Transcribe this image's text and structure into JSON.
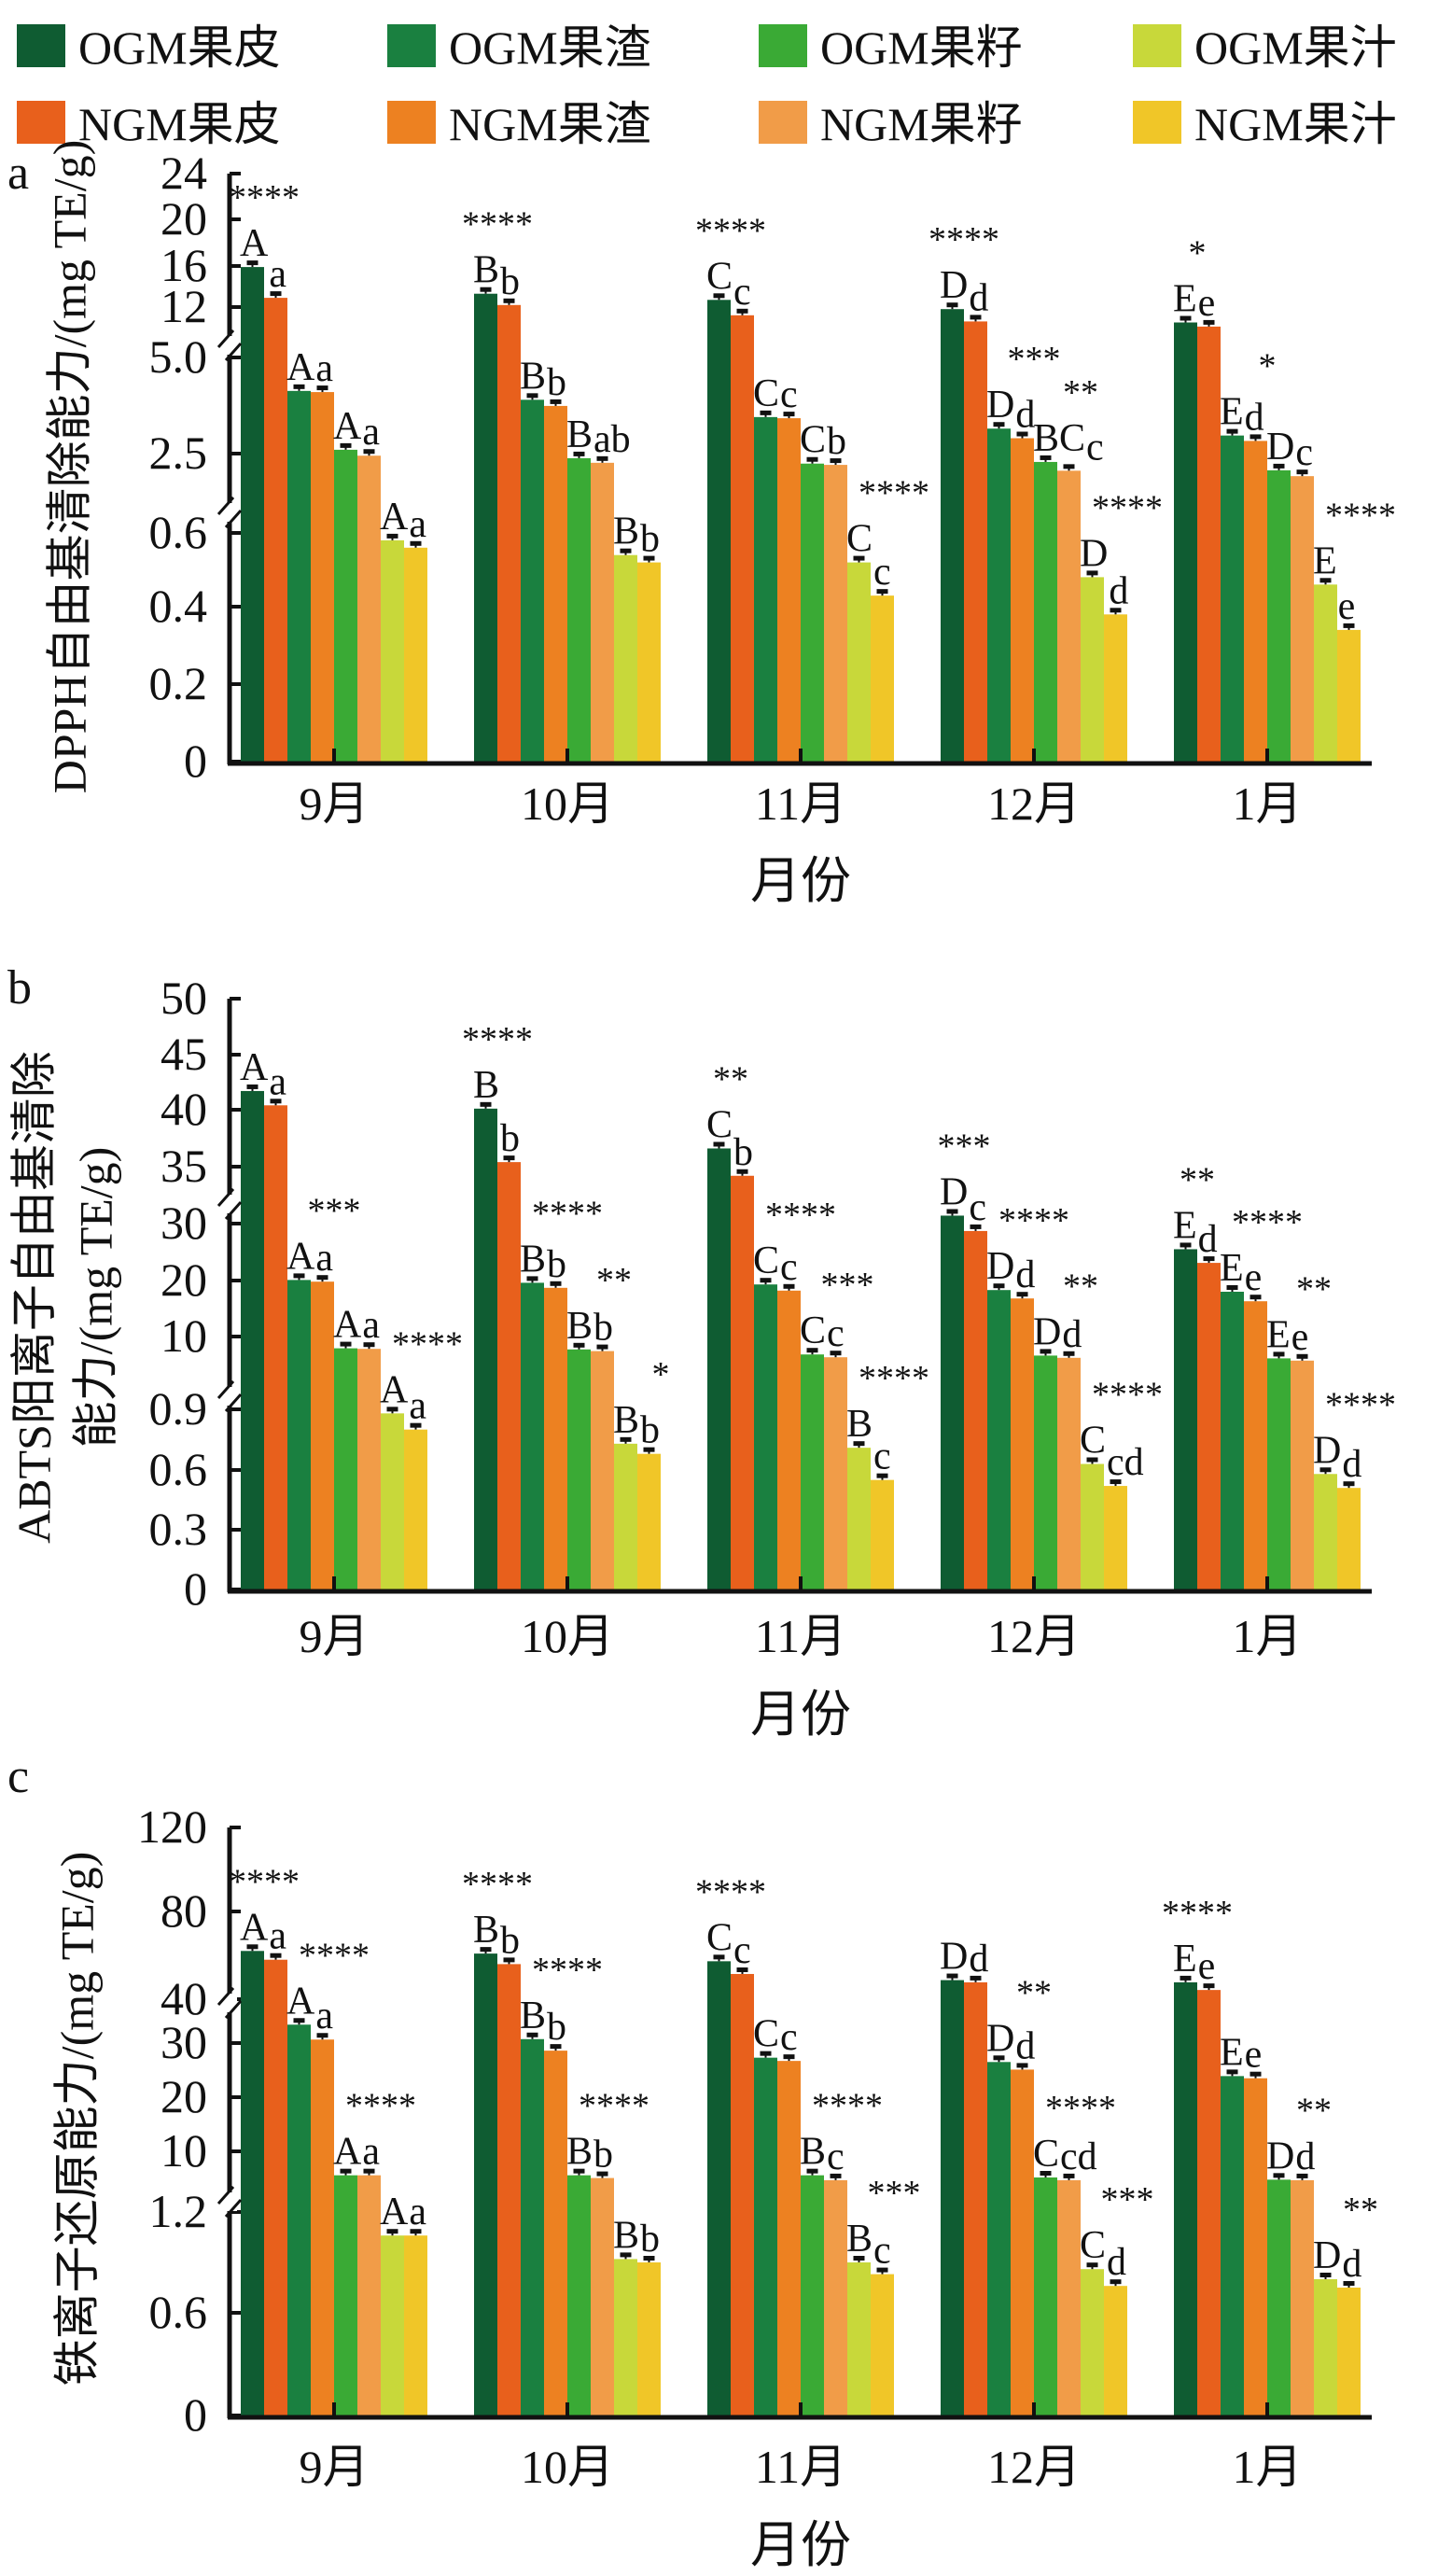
{
  "legend": [
    {
      "name": "OGM果皮",
      "color": "#0f5c32"
    },
    {
      "name": "OGM果渣",
      "color": "#1a8040"
    },
    {
      "name": "OGM果籽",
      "color": "#3aaa35"
    },
    {
      "name": "OGM果汁",
      "color": "#c8d83a"
    },
    {
      "name": "NGM果皮",
      "color": "#e8601c"
    },
    {
      "name": "NGM果渣",
      "color": "#ed8121"
    },
    {
      "name": "NGM果籽",
      "color": "#f19c48"
    },
    {
      "name": "NGM果汁",
      "color": "#f0c628"
    }
  ],
  "chart_data": [
    {
      "panel": "a",
      "type": "bar",
      "xlabel": "月份",
      "ylabel": [
        "DPPH自由基清除能力/(mg TE/g)"
      ],
      "categories": [
        "9月",
        "10月",
        "11月",
        "12月",
        "1月"
      ],
      "yticks": [
        "0",
        "0.2",
        "0.4",
        "0.6",
        "2.5",
        "5.0",
        "12",
        "16",
        "20",
        "24"
      ],
      "ytick_values": [
        0,
        0.2,
        0.4,
        0.6,
        2.5,
        5.0,
        12,
        16,
        20,
        24
      ],
      "axis_breaks": [
        "0.6–2.5",
        "5.0–12"
      ],
      "series_order": [
        "OGM果皮",
        "NGM果皮",
        "OGM果渣",
        "NGM果渣",
        "OGM果籽",
        "NGM果籽",
        "OGM果汁",
        "NGM果汁"
      ],
      "values": [
        [
          15.9,
          12.9,
          4.13,
          4.1,
          2.6,
          2.45,
          0.58,
          0.56
        ],
        [
          13.3,
          12.2,
          3.9,
          3.74,
          2.39,
          2.28,
          0.54,
          0.52
        ],
        [
          12.7,
          11.2,
          3.45,
          3.42,
          2.26,
          2.23,
          0.52,
          0.43
        ],
        [
          11.8,
          10.6,
          3.15,
          2.9,
          2.3,
          2.09,
          0.48,
          0.38
        ],
        [
          10.5,
          10.1,
          2.97,
          2.83,
          2.1,
          1.96,
          0.46,
          0.34
        ]
      ],
      "letters": [
        [
          "A",
          "a",
          "A",
          "a",
          "A",
          "a",
          "A",
          "a"
        ],
        [
          "B",
          "b",
          "B",
          "b",
          "B",
          "ab",
          "B",
          "b"
        ],
        [
          "C",
          "c",
          "C",
          "c",
          "C",
          "b",
          "C",
          "c"
        ],
        [
          "D",
          "d",
          "D",
          "d",
          "BC",
          "c",
          "D",
          "d"
        ],
        [
          "E",
          "e",
          "E",
          "d",
          "D",
          "c",
          "E",
          "e"
        ]
      ],
      "stars": [
        [
          "****",
          "",
          "",
          ""
        ],
        [
          "****",
          "",
          "",
          ""
        ],
        [
          "****",
          "",
          "",
          "****"
        ],
        [
          "****",
          "***",
          "**",
          "****"
        ],
        [
          "*",
          "*",
          "",
          "****"
        ]
      ]
    },
    {
      "panel": "b",
      "type": "bar",
      "xlabel": "月份",
      "ylabel": [
        "ABTS阳离子自由基清除",
        "能力/(mg TE/g)"
      ],
      "categories": [
        "9月",
        "10月",
        "11月",
        "12月",
        "1月"
      ],
      "yticks": [
        "0",
        "0.3",
        "0.6",
        "0.9",
        "10",
        "20",
        "30",
        "35",
        "40",
        "45",
        "50"
      ],
      "ytick_values": [
        0,
        0.3,
        0.6,
        0.9,
        10,
        20,
        30,
        35,
        40,
        45,
        50
      ],
      "axis_breaks": [
        "0.9–10",
        "30–35"
      ],
      "series_order": [
        "OGM果皮",
        "NGM果皮",
        "OGM果渣",
        "NGM果渣",
        "OGM果籽",
        "NGM果籽",
        "OGM果汁",
        "NGM果汁"
      ],
      "values": [
        [
          41.7,
          40.4,
          20.1,
          19.8,
          7.9,
          7.8,
          0.88,
          0.8
        ],
        [
          40.1,
          35.4,
          19.6,
          18.7,
          7.7,
          7.4,
          0.73,
          0.68
        ],
        [
          36.6,
          34.2,
          19.3,
          18.2,
          6.8,
          6.3,
          0.71,
          0.55
        ],
        [
          30.7,
          28.7,
          18.3,
          16.8,
          6.6,
          6.2,
          0.63,
          0.52
        ],
        [
          25.5,
          23.1,
          18.0,
          16.3,
          6.1,
          5.7,
          0.58,
          0.51
        ]
      ],
      "letters": [
        [
          "A",
          "a",
          "A",
          "a",
          "A",
          "a",
          "A",
          "a"
        ],
        [
          "B",
          "b",
          "B",
          "b",
          "B",
          "b",
          "B",
          "b"
        ],
        [
          "C",
          "b",
          "C",
          "c",
          "C",
          "c",
          "B",
          "c"
        ],
        [
          "D",
          "c",
          "D",
          "d",
          "D",
          "d",
          "C",
          "cd"
        ],
        [
          "E",
          "d",
          "E",
          "e",
          "E",
          "e",
          "D",
          "d"
        ]
      ],
      "stars": [
        [
          "",
          "***",
          "",
          "****"
        ],
        [
          "****",
          "****",
          "**",
          "*"
        ],
        [
          "**",
          "****",
          "***",
          "****"
        ],
        [
          "***",
          "****",
          "**",
          "****"
        ],
        [
          "**",
          "****",
          "**",
          "****"
        ]
      ]
    },
    {
      "panel": "c",
      "type": "bar",
      "xlabel": "月份",
      "ylabel": [
        "铁离子还原能力/(mg TE/g)"
      ],
      "categories": [
        "9月",
        "10月",
        "11月",
        "12月",
        "1月"
      ],
      "yticks": [
        "0",
        "0.6",
        "1.2",
        "10",
        "20",
        "30",
        "40",
        "80",
        "120"
      ],
      "ytick_values": [
        0,
        0.6,
        1.2,
        10,
        20,
        30,
        40,
        80,
        120
      ],
      "axis_breaks": [
        "1.2–10",
        "30–40"
      ],
      "series_order": [
        "OGM果皮",
        "NGM果皮",
        "OGM果渣",
        "NGM果渣",
        "OGM果籽",
        "NGM果籽",
        "OGM果汁",
        "NGM果汁"
      ],
      "values": [
        [
          62,
          58,
          34.2,
          30.8,
          5.6,
          5.6,
          1.06,
          1.06
        ],
        [
          60.8,
          56,
          30.9,
          28.6,
          5.6,
          5.1,
          0.92,
          0.9
        ],
        [
          57.3,
          51.5,
          27.3,
          26.7,
          5.6,
          4.7,
          0.9,
          0.83
        ],
        [
          48.7,
          47.7,
          26.5,
          25.1,
          5.2,
          4.7,
          0.86,
          0.76
        ],
        [
          47.7,
          44.2,
          23.9,
          23.5,
          4.8,
          4.7,
          0.8,
          0.75
        ]
      ],
      "letters": [
        [
          "A",
          "a",
          "A",
          "a",
          "A",
          "a",
          "A",
          "a"
        ],
        [
          "B",
          "b",
          "B",
          "b",
          "B",
          "b",
          "B",
          "b"
        ],
        [
          "C",
          "c",
          "C",
          "c",
          "B",
          "c",
          "B",
          "c"
        ],
        [
          "D",
          "d",
          "D",
          "d",
          "C",
          "cd",
          "C",
          "d"
        ],
        [
          "E",
          "e",
          "E",
          "e",
          "D",
          "d",
          "D",
          "d"
        ]
      ],
      "stars": [
        [
          "****",
          "****",
          "****",
          ""
        ],
        [
          "****",
          "****",
          "****",
          ""
        ],
        [
          "****",
          "",
          "****",
          "***"
        ],
        [
          "",
          "**",
          "****",
          "***"
        ],
        [
          "****",
          "",
          "**",
          "**"
        ]
      ]
    }
  ]
}
